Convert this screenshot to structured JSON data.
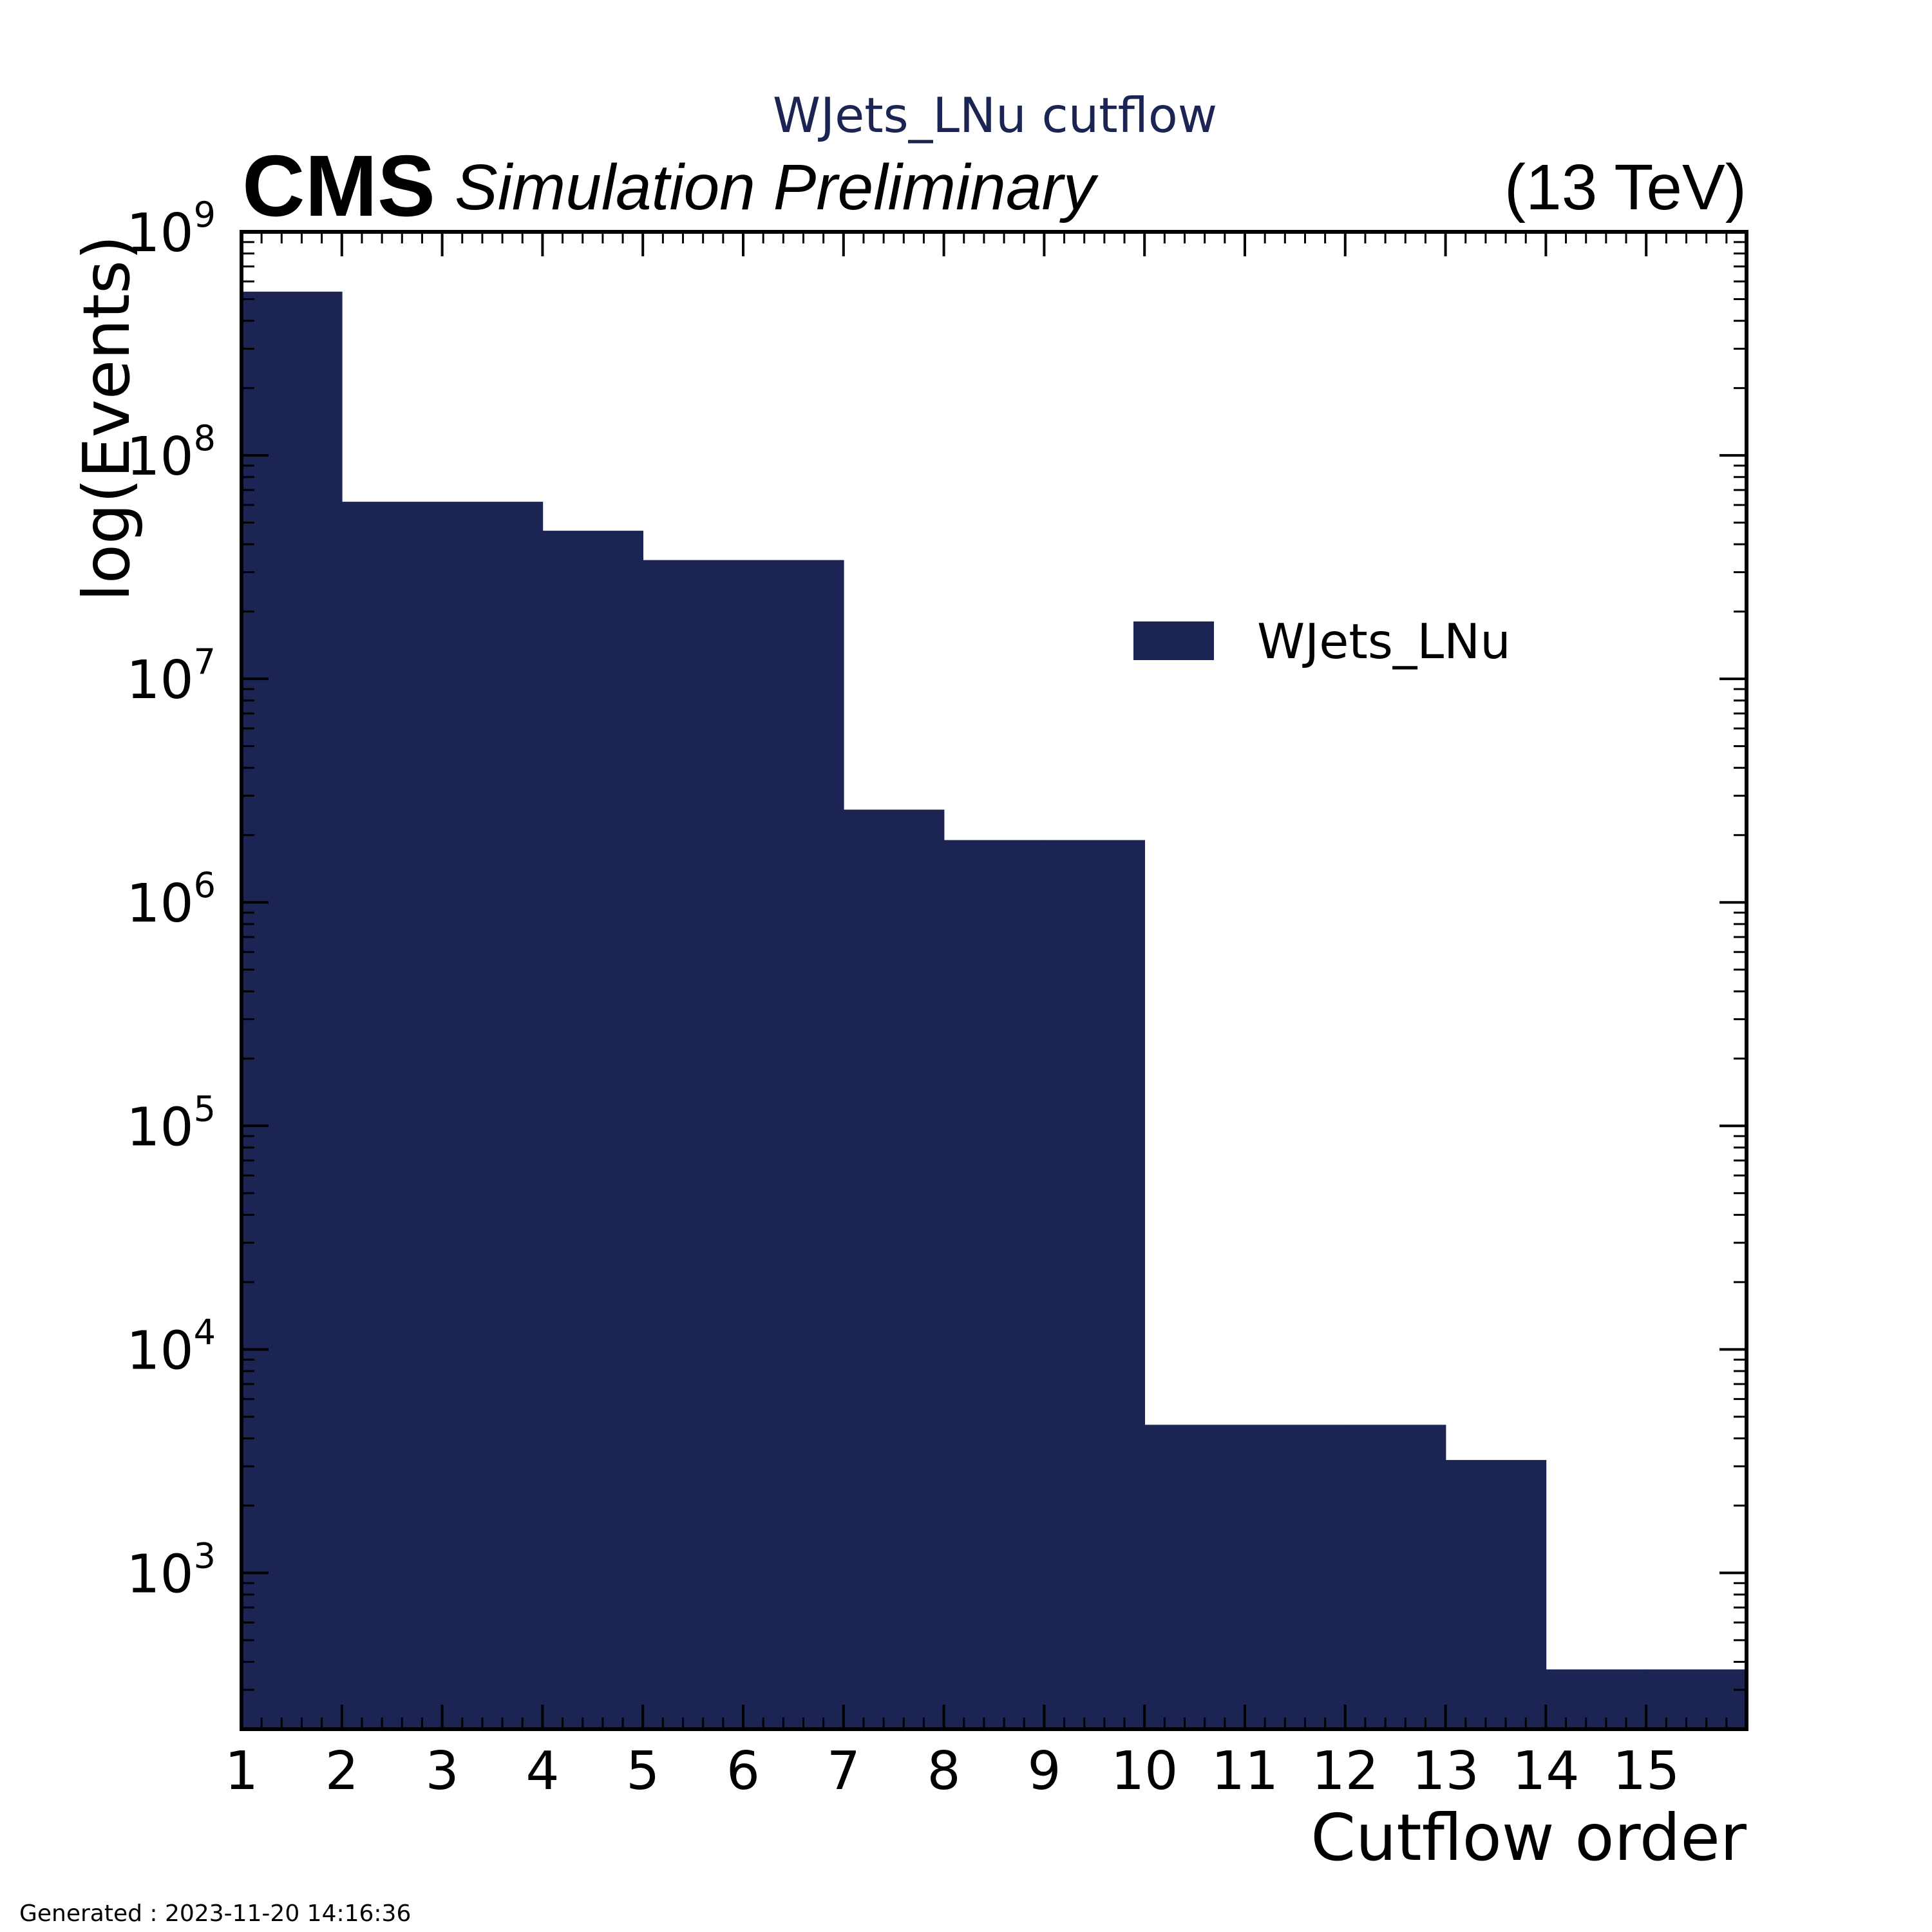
{
  "header": {
    "title": "WJets_LNu cutflow",
    "experiment": "CMS",
    "status": "Simulation Preliminary",
    "energy": "(13 TeV)"
  },
  "footer": {
    "generated": "Generated : 2023-11-20 14:16:36"
  },
  "colors": {
    "fill": "#1b2453",
    "title": "#1b2453",
    "axis": "#000000"
  },
  "chart_data": {
    "type": "bar",
    "style": "histogram",
    "title": "WJets_LNu cutflow",
    "xlabel": "Cutflow order",
    "ylabel": "log(Events)",
    "yscale": "log",
    "xlim": [
      1,
      16
    ],
    "ylim": [
      200,
      1000000000
    ],
    "x_ticks": [
      "1",
      "2",
      "3",
      "4",
      "5",
      "6",
      "7",
      "8",
      "9",
      "10",
      "11",
      "12",
      "13",
      "14",
      "15"
    ],
    "y_ticks": [
      {
        "base": "10",
        "exp": "3"
      },
      {
        "base": "10",
        "exp": "4"
      },
      {
        "base": "10",
        "exp": "5"
      },
      {
        "base": "10",
        "exp": "6"
      },
      {
        "base": "10",
        "exp": "7"
      },
      {
        "base": "10",
        "exp": "8"
      },
      {
        "base": "10",
        "exp": "9"
      }
    ],
    "bin_edges": [
      1,
      2,
      3,
      4,
      5,
      6,
      7,
      8,
      9,
      10,
      11,
      12,
      13,
      14,
      15,
      16
    ],
    "series": [
      {
        "name": "WJets_LNu",
        "values": [
          540000000,
          62000000,
          62000000,
          46000000,
          34000000,
          34000000,
          2600000,
          1900000,
          1900000,
          4600,
          4600,
          4600,
          3200,
          370,
          370
        ]
      }
    ],
    "legend": {
      "position": "upper-right",
      "labels": [
        "WJets_LNu"
      ]
    },
    "grid": false
  }
}
